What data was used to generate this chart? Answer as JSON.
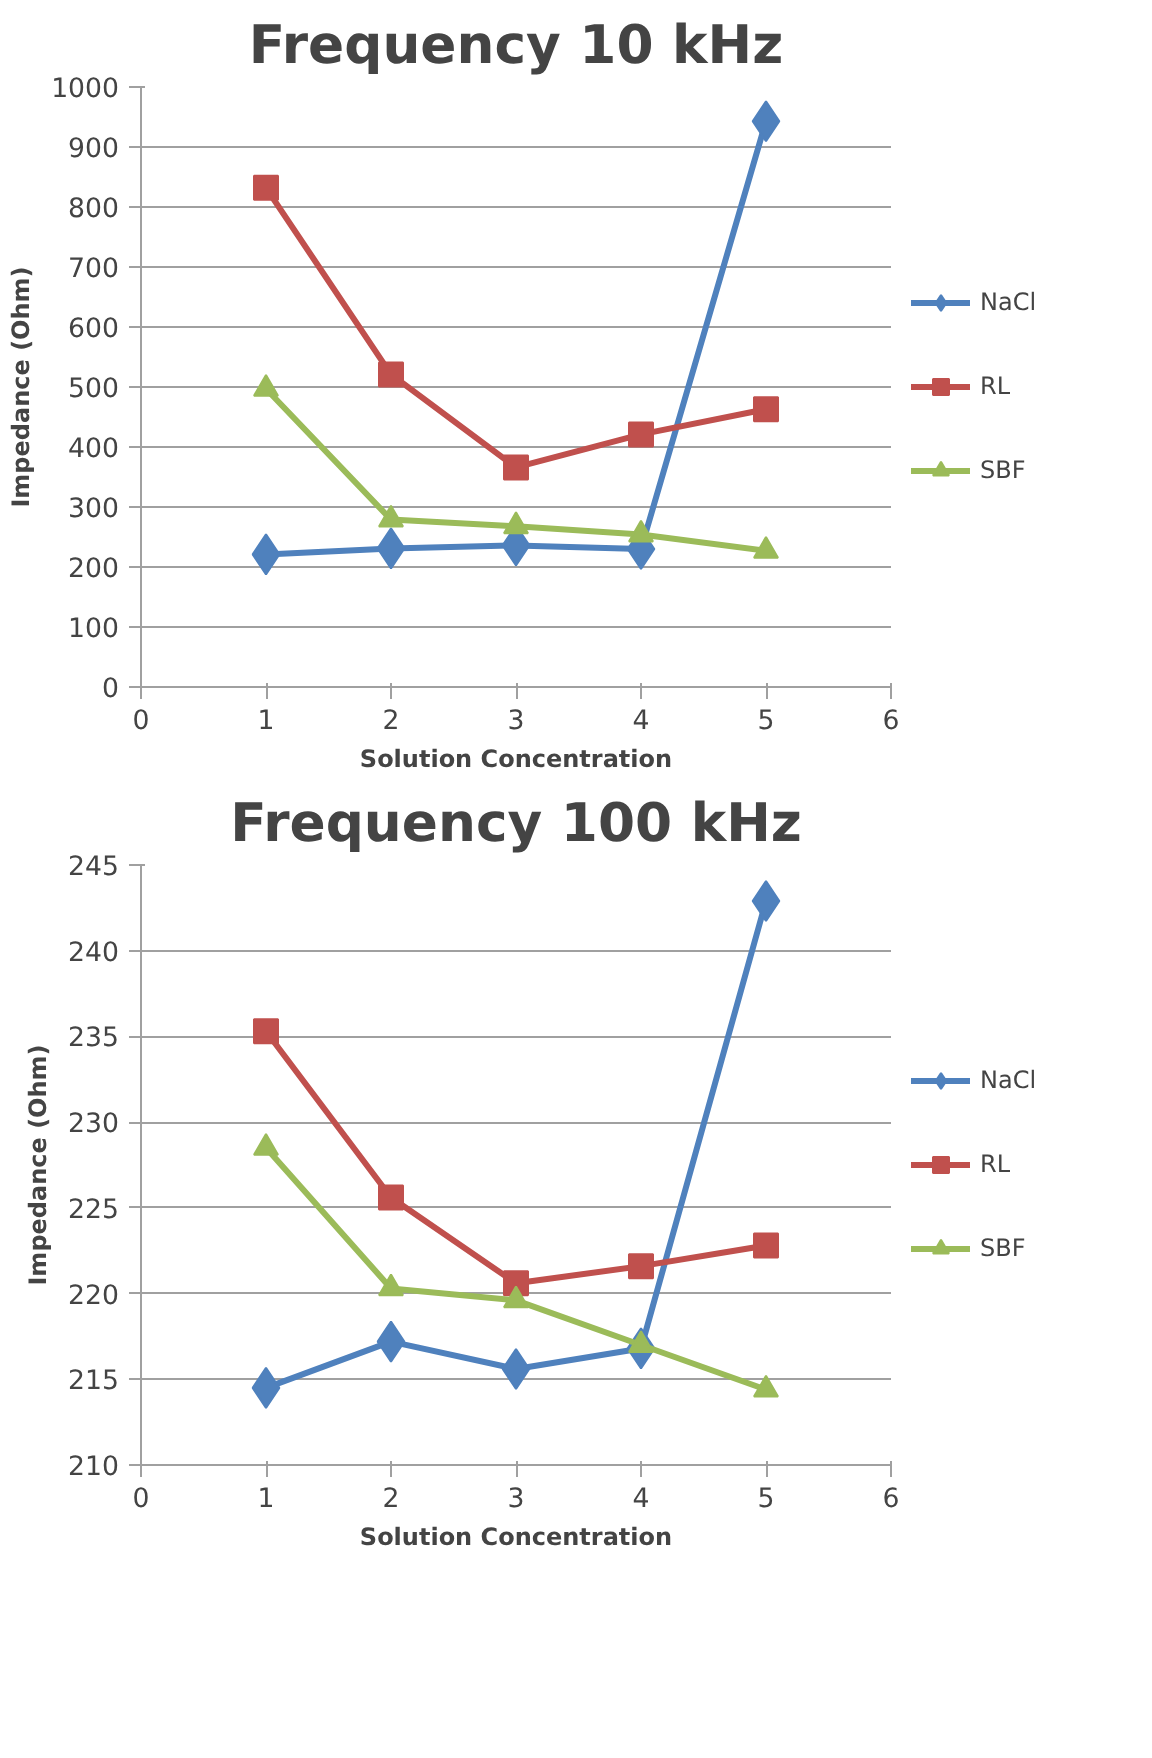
{
  "chart_data": [
    {
      "type": "line",
      "title": "Frequency 10 kHz",
      "xlabel": "Solution Concentration",
      "ylabel": "Impedance (Ohm)",
      "x": [
        1,
        2,
        3,
        4,
        5
      ],
      "xlim": [
        0,
        6
      ],
      "xticks": [
        0,
        1,
        2,
        3,
        4,
        5,
        6
      ],
      "ylim": [
        0,
        1000
      ],
      "yticks": [
        0,
        100,
        200,
        300,
        400,
        500,
        600,
        700,
        800,
        900,
        1000
      ],
      "grid": "y",
      "legend": "right",
      "line_style": "solid",
      "series": [
        {
          "name": "NaCl",
          "color": "#4f81bd",
          "marker": "diamond",
          "values": [
            221,
            231,
            236,
            230,
            943
          ]
        },
        {
          "name": "RL",
          "color": "#c0504d",
          "marker": "square",
          "values": [
            832,
            521,
            366,
            421,
            463
          ]
        },
        {
          "name": "SBF",
          "color": "#9bbb59",
          "marker": "triangle",
          "values": [
            497,
            279,
            268,
            254,
            227
          ]
        }
      ]
    },
    {
      "type": "line",
      "title": "Frequency 100 kHz",
      "xlabel": "Solution Concentration",
      "ylabel": "Impedance (Ohm)",
      "x": [
        1,
        2,
        3,
        4,
        5
      ],
      "xlim": [
        0,
        6
      ],
      "xticks": [
        0,
        1,
        2,
        3,
        4,
        5,
        6
      ],
      "ylim": [
        210,
        245
      ],
      "yticks": [
        210,
        215,
        220,
        225,
        230,
        235,
        240,
        245
      ],
      "grid": "y",
      "legend": "right",
      "line_style": "solid",
      "series": [
        {
          "name": "NaCl",
          "color": "#4f81bd",
          "marker": "diamond",
          "values": [
            214.5,
            217.2,
            215.6,
            216.8,
            242.9
          ]
        },
        {
          "name": "RL",
          "color": "#c0504d",
          "marker": "square",
          "values": [
            235.3,
            225.6,
            220.6,
            221.6,
            222.8
          ]
        },
        {
          "name": "SBF",
          "color": "#9bbb59",
          "marker": "triangle",
          "values": [
            228.5,
            220.3,
            219.6,
            217.0,
            214.4
          ]
        }
      ]
    }
  ]
}
